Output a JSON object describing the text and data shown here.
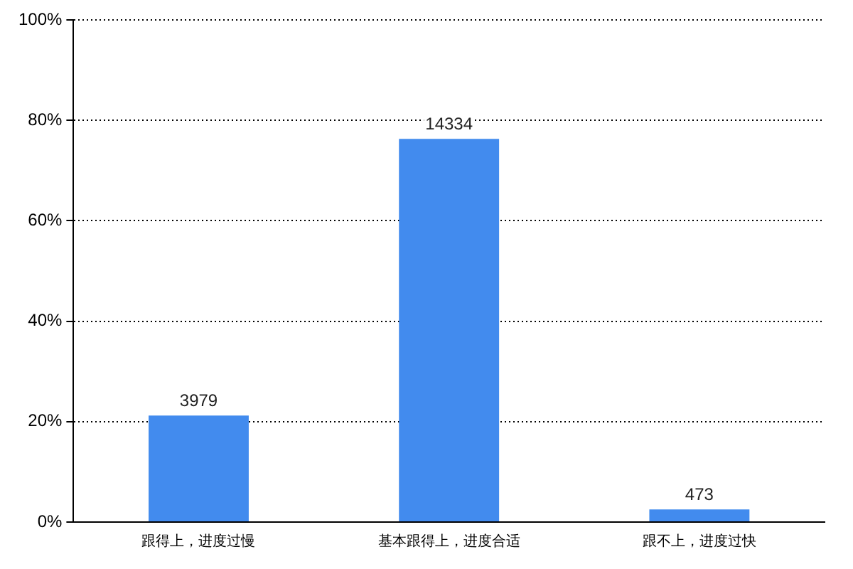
{
  "chart_data": {
    "type": "bar",
    "categories": [
      "跟得上，进度过慢",
      "基本跟得上，进度合适",
      "跟不上，进度过快"
    ],
    "values": [
      21.2,
      76.3,
      2.5
    ],
    "color": "#428bee",
    "annotations": [
      {
        "text": "3979",
        "x": "跟得上，进度过慢",
        "y": 21.2
      },
      {
        "text": "14334",
        "x": "基本跟得上，进度合适",
        "y": 76.3
      },
      {
        "text": "473",
        "x": "跟不上，进度过快",
        "y": 2.5
      }
    ],
    "ylim": [
      0,
      100
    ],
    "yticks": [
      {
        "value": 0,
        "label": "0%"
      },
      {
        "value": 20,
        "label": "20%"
      },
      {
        "value": 40,
        "label": "40%"
      },
      {
        "value": 60,
        "label": "60%"
      },
      {
        "value": 80,
        "label": "80%"
      },
      {
        "value": 100,
        "label": "100%"
      }
    ],
    "grid": "y"
  }
}
